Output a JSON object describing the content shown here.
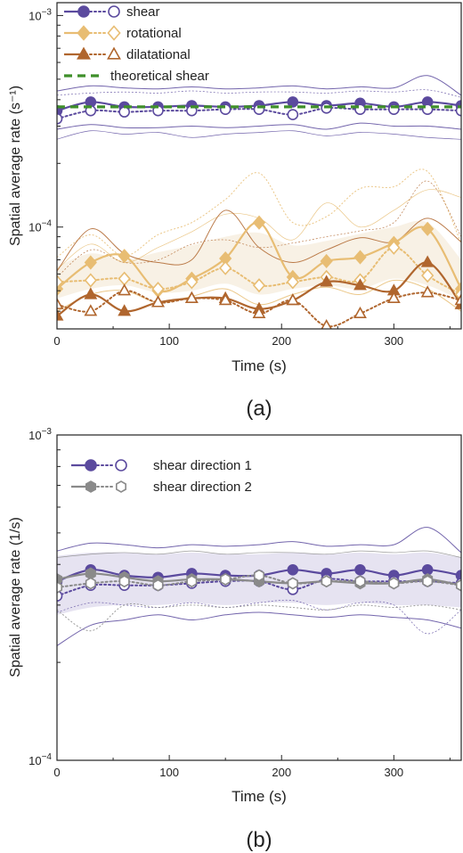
{
  "colors": {
    "shear": "#5b4a9e",
    "shear_light": "#7468b3",
    "rotational": "#e8bd73",
    "dilatational": "#b0662e",
    "theoretical": "#3f8f2a",
    "shear2": "#8a8a8a",
    "band_a": "#f7efe2",
    "band_b": "#e3e0ef",
    "axis": "#222222"
  },
  "chart_data": [
    {
      "type": "line",
      "panel_label": "(a)",
      "xlabel": "Time (s)",
      "ylabel": "Spatial average rate (s⁻¹)",
      "xlim": [
        0,
        360
      ],
      "ylim": [
        3.3e-05,
        0.00115
      ],
      "yscale": "log",
      "xticks": [
        0,
        100,
        200,
        300
      ],
      "yticks": [
        {
          "value": 0.0001,
          "label": "10⁻⁴"
        },
        {
          "value": 0.001,
          "label": "10⁻³"
        }
      ],
      "legend_position": "top-left",
      "x": [
        0,
        30,
        60,
        90,
        120,
        150,
        180,
        210,
        240,
        270,
        300,
        330,
        360
      ],
      "series": [
        {
          "name": "shear",
          "style": "solid-filled-circle",
          "values": [
            0.000355,
            0.00039,
            0.00037,
            0.00037,
            0.000375,
            0.00037,
            0.000375,
            0.00039,
            0.000375,
            0.000385,
            0.00037,
            0.00039,
            0.000375
          ]
        },
        {
          "name": "",
          "style": "dotted-open-circle",
          "values": [
            0.000325,
            0.000355,
            0.00035,
            0.000355,
            0.000355,
            0.00036,
            0.00036,
            0.00034,
            0.000365,
            0.00036,
            0.00036,
            0.00036,
            0.000355
          ]
        },
        {
          "name": "rotational",
          "style": "solid-filled-diamond",
          "values": [
            5.1e-05,
            6.8e-05,
            7.3e-05,
            5e-05,
            5.7e-05,
            7.1e-05,
            0.000105,
            5.8e-05,
            6.9e-05,
            7.2e-05,
            8.4e-05,
            9.8e-05,
            5.1e-05
          ]
        },
        {
          "name": "",
          "style": "dotted-open-diamond",
          "values": [
            5.5e-05,
            5.6e-05,
            5.7e-05,
            5.1e-05,
            5.5e-05,
            6.4e-05,
            5.3e-05,
            5.5e-05,
            5.8e-05,
            5.6e-05,
            8e-05,
            5.9e-05,
            4.8e-05
          ]
        },
        {
          "name": "dilatational",
          "style": "solid-filled-triangle",
          "values": [
            3.8e-05,
            4.8e-05,
            4e-05,
            4.4e-05,
            4.6e-05,
            4.6e-05,
            4.1e-05,
            4.5e-05,
            5.5e-05,
            5.3e-05,
            5e-05,
            6.8e-05,
            4.3e-05
          ]
        },
        {
          "name": "",
          "style": "dotted-open-triangle",
          "values": [
            4.3e-05,
            4e-05,
            5e-05,
            4.4e-05,
            4.6e-05,
            4.5e-05,
            3.9e-05,
            4.5e-05,
            3.4e-05,
            3.9e-05,
            4.6e-05,
            4.9e-05,
            4.5e-05
          ]
        },
        {
          "name": "theoretical shear",
          "style": "dashed",
          "values": [
            0.00037,
            0.00037,
            0.00037,
            0.00037,
            0.00037,
            0.00037,
            0.00037,
            0.00037,
            0.00037,
            0.00037,
            0.00037,
            0.00037,
            0.00037
          ]
        }
      ],
      "envelopes": [
        {
          "series": "shear",
          "values": [
            0.00044,
            0.000465,
            0.000455,
            0.00045,
            0.00046,
            0.00045,
            0.000455,
            0.000465,
            0.00045,
            0.00046,
            0.000455,
            0.00052,
            0.00042
          ]
        },
        {
          "series": "shear",
          "values": [
            0.00042,
            0.00043,
            0.000435,
            0.00043,
            0.00044,
            0.00043,
            0.000435,
            0.000435,
            0.00043,
            0.00044,
            0.000435,
            0.000445,
            0.00041
          ]
        },
        {
          "series": "shear",
          "values": [
            0.00029,
            0.000305,
            0.000295,
            0.000295,
            0.0003,
            0.000295,
            0.0003,
            0.000305,
            0.00029,
            0.00031,
            0.0003,
            0.0003,
            0.00029
          ]
        },
        {
          "series": "shear",
          "values": [
            0.00026,
            0.000285,
            0.000275,
            0.00028,
            0.000265,
            0.000275,
            0.00028,
            0.000285,
            0.00027,
            0.00028,
            0.000275,
            0.000265,
            0.00026
          ]
        },
        {
          "series": "rotational",
          "values": [
            7.2e-05,
            9.2e-05,
            7.3e-05,
            9.2e-05,
            0.000105,
            0.000135,
            0.00018,
            0.000105,
            0.000112,
            0.000152,
            0.000155,
            0.000183,
            8.4e-05
          ]
        },
        {
          "series": "rotational",
          "values": [
            6.3e-05,
            8.3e-05,
            6.8e-05,
            8e-05,
            9.5e-05,
            0.000115,
            0.00011,
            8.7e-05,
            0.00013,
            0.0001,
            0.00012,
            0.00015,
            0.000138
          ]
        },
        {
          "series": "rotational",
          "values": [
            4e-05,
            4.8e-05,
            5e-05,
            4.4e-05,
            4.7e-05,
            5.1e-05,
            4.3e-05,
            4.8e-05,
            5.2e-05,
            4.8e-05,
            5.6e-05,
            5.1e-05,
            4e-05
          ]
        },
        {
          "series": "dilatational",
          "values": [
            5.8e-05,
            7.8e-05,
            6.8e-05,
            7e-05,
            8.3e-05,
            8.7e-05,
            8e-05,
            8.4e-05,
            9e-05,
            9.6e-05,
            0.000105,
            0.000165,
            9e-05
          ]
        },
        {
          "series": "dilatational",
          "values": [
            6.2e-05,
            9.8e-05,
            7.5e-05,
            6.8e-05,
            7e-05,
            0.00012,
            8e-05,
            6.8e-05,
            7.8e-05,
            8.9e-05,
            8.5e-05,
            0.00011,
            8.5e-05
          ]
        }
      ],
      "band": {
        "series": "rotational",
        "upper": [
          6.5e-05,
          7.5e-05,
          7e-05,
          7.6e-05,
          8.2e-05,
          9e-05,
          9.4e-05,
          8.2e-05,
          8.6e-05,
          9.3e-05,
          0.0001,
          0.000105,
          7e-05
        ],
        "lower": [
          4.6e-05,
          5.1e-05,
          5.3e-05,
          4.9e-05,
          5e-05,
          5.4e-05,
          4.8e-05,
          5.1e-05,
          5.3e-05,
          5.1e-05,
          5.7e-05,
          5.3e-05,
          4.5e-05
        ]
      }
    },
    {
      "type": "line",
      "panel_label": "(b)",
      "xlabel": "Time (s)",
      "ylabel": "Spatial average rate (1/s)",
      "xlim": [
        0,
        360
      ],
      "ylim": [
        0.0001,
        0.001
      ],
      "yscale": "log",
      "xticks": [
        0,
        100,
        200,
        300
      ],
      "yticks": [
        {
          "value": 0.0001,
          "label": "10⁻⁴"
        },
        {
          "value": 0.001,
          "label": "10⁻³"
        }
      ],
      "legend_position": "top-left",
      "x": [
        0,
        30,
        60,
        90,
        120,
        150,
        180,
        210,
        240,
        270,
        300,
        330,
        360
      ],
      "series": [
        {
          "name": "shear direction 1",
          "style": "solid-filled-circle",
          "values": [
            0.000355,
            0.000385,
            0.00037,
            0.000365,
            0.000375,
            0.00037,
            0.00037,
            0.000385,
            0.000375,
            0.000385,
            0.00037,
            0.000385,
            0.00037
          ]
        },
        {
          "name": "",
          "style": "dotted-open-circle",
          "values": [
            0.00032,
            0.000345,
            0.000345,
            0.000345,
            0.00035,
            0.000355,
            0.000355,
            0.000335,
            0.00036,
            0.000355,
            0.000355,
            0.000355,
            0.00035
          ]
        },
        {
          "name": "shear direction 2",
          "style": "solid-filled-hexagon",
          "values": [
            0.00036,
            0.000375,
            0.000365,
            0.000355,
            0.00036,
            0.00036,
            0.000355,
            0.00035,
            0.000355,
            0.00035,
            0.00035,
            0.00036,
            0.000345
          ]
        },
        {
          "name": "",
          "style": "dotted-open-hexagon",
          "values": [
            0.00034,
            0.00035,
            0.000355,
            0.000345,
            0.000355,
            0.00036,
            0.00037,
            0.00035,
            0.000355,
            0.000355,
            0.00035,
            0.000355,
            0.000345
          ]
        }
      ],
      "envelopes": [
        {
          "series": "shear direction 1",
          "values": [
            0.00044,
            0.000465,
            0.00046,
            0.00045,
            0.00046,
            0.000455,
            0.00046,
            0.00047,
            0.000455,
            0.00046,
            0.00046,
            0.00052,
            0.000435
          ]
        },
        {
          "series": "shear direction 1",
          "values": [
            0.000285,
            0.000305,
            0.0003,
            0.000295,
            0.000305,
            0.000295,
            0.000305,
            0.00031,
            0.00029,
            0.000305,
            0.0003,
            0.000245,
            0.00029
          ]
        },
        {
          "series": "shear direction 1",
          "values": [
            0.000225,
            0.00026,
            0.00027,
            0.00028,
            0.00027,
            0.00028,
            0.000285,
            0.00028,
            0.000275,
            0.00028,
            0.000275,
            0.00027,
            0.000255
          ]
        },
        {
          "series": "shear direction 2",
          "values": [
            0.00042,
            0.00043,
            0.000435,
            0.00043,
            0.00044,
            0.00043,
            0.000435,
            0.000435,
            0.00043,
            0.00044,
            0.000435,
            0.00044,
            0.00042
          ]
        },
        {
          "series": "shear direction 2",
          "values": [
            0.00029,
            0.00025,
            0.0003,
            0.000295,
            0.0003,
            0.000295,
            0.0003,
            0.000295,
            0.00029,
            0.0003,
            0.000295,
            0.0003,
            0.00029
          ]
        }
      ],
      "band": {
        "series": "shear direction 1",
        "upper": [
          0.000425,
          0.000435,
          0.000435,
          0.00043,
          0.000435,
          0.00043,
          0.00043,
          0.000435,
          0.00043,
          0.000435,
          0.00043,
          0.000435,
          0.00042
        ],
        "lower": [
          0.00028,
          0.000295,
          0.0003,
          0.0003,
          0.000305,
          0.0003,
          0.000305,
          0.000305,
          0.0003,
          0.000305,
          0.0003,
          0.0003,
          0.000295
        ]
      }
    }
  ]
}
